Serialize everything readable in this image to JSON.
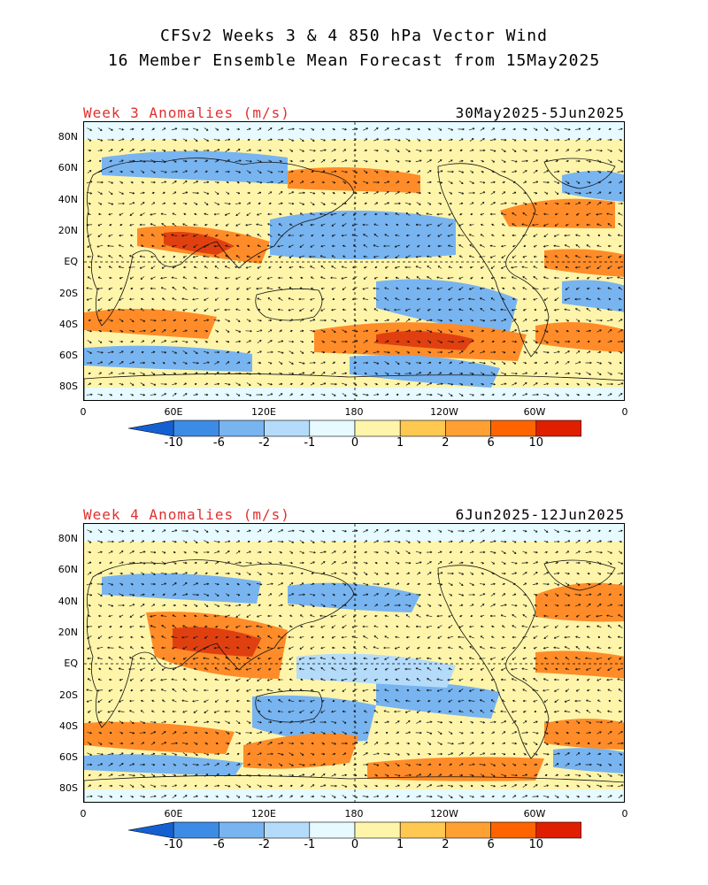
{
  "title_line1": "CFSv2 Weeks 3 & 4 850 hPa Vector Wind",
  "title_line2": "16 Member Ensemble Mean Forecast from 15May2025",
  "panels": [
    {
      "label": "Week 3 Anomalies (m/s)",
      "dates": "30May2025-5Jun2025"
    },
    {
      "label": "Week 4 Anomalies (m/s)",
      "dates": "6Jun2025-12Jun2025"
    }
  ],
  "lat_ticks": [
    "80N",
    "60N",
    "40N",
    "20N",
    "EQ",
    "20S",
    "40S",
    "60S",
    "80S"
  ],
  "lon_ticks": [
    "0",
    "60E",
    "120E",
    "180",
    "120W",
    "60W",
    "0"
  ],
  "colorbar": {
    "labels": [
      "-10",
      "-6",
      "-2",
      "-1",
      "0",
      "1",
      "2",
      "6",
      "10"
    ],
    "colors": [
      "#1460d0",
      "#3c8ce6",
      "#78b4f0",
      "#b4dcfa",
      "#e6faff",
      "#fff5aa",
      "#ffc850",
      "#ffa032",
      "#ff6400",
      "#e01e00",
      "#a00000"
    ]
  },
  "anomaly_colors": {
    "strong_neg": "#3c8ce6",
    "neg": "#78b4f0",
    "weak_neg": "#b4dcfa",
    "neutral": "#e6faff",
    "weak_pos": "#fff5aa",
    "pos": "#ffc850",
    "strong_pos": "#ff8c28",
    "very_strong_pos": "#e04010"
  }
}
